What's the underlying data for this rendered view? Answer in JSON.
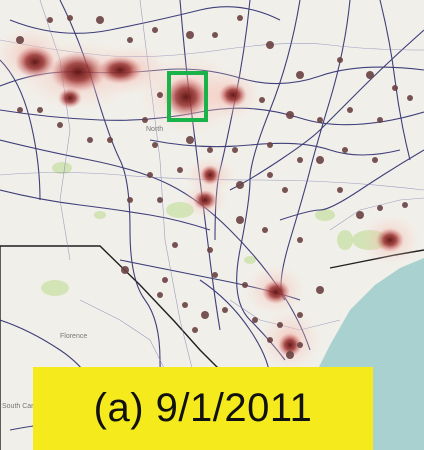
{
  "caption": {
    "text": "(a) 9/1/2011"
  },
  "map_labels": [
    {
      "text": "North"
    },
    {
      "text": "Florence"
    },
    {
      "text": "South Car."
    }
  ],
  "highlight": {
    "color": "#19b34a",
    "meaning": "selected region"
  },
  "colors": {
    "land": "#f1efe9",
    "ocean": "#a9d1d0",
    "roads": "#2a2a6a",
    "boundary": "#222222",
    "hotspot": "#7d1c1c",
    "cluster": "#6a4242",
    "park": "#cfe3b0"
  }
}
